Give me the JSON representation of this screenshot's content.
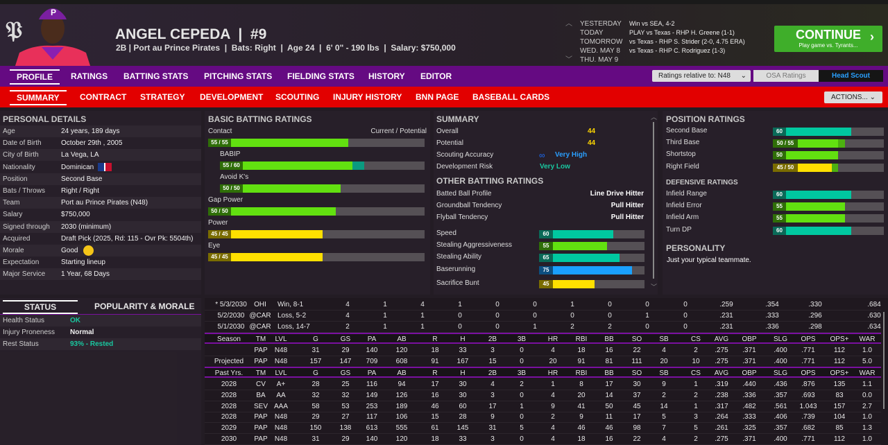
{
  "header": {
    "logo_text": "P",
    "player_name": "ANGEL CEPEDA  |  #9",
    "player_info": "2B | Port au Prince Pirates  |  Bats: Right  |  Age 24  |  6' 0\" - 190 lbs  |  Salary: $750,000"
  },
  "schedule": [
    {
      "day": "YESTERDAY",
      "text": "Win vs SEA, 4-2"
    },
    {
      "day": "TODAY",
      "text": "PLAY vs Texas - RHP H. Greene (1-1)"
    },
    {
      "day": "TOMORROW",
      "text": "vs Texas - RHP S. Strider (2-0, 4.75 ERA)"
    },
    {
      "day": "WED. MAY 8",
      "text": "vs Texas - RHP C. Rodriguez (1-3)"
    },
    {
      "day": "THU. MAY 9",
      "text": ""
    }
  ],
  "continue": {
    "label": "CONTINUE",
    "sub": "Play game vs. Tyrants..."
  },
  "main_tabs": [
    "PROFILE",
    "RATINGS",
    "BATTING STATS",
    "PITCHING STATS",
    "FIELDING STATS",
    "HISTORY",
    "EDITOR"
  ],
  "ratings_relative": "Ratings relative to: N48",
  "osa_ratings": "OSA Ratings",
  "head_scout": "Head Scout",
  "sub_tabs": [
    "SUMMARY",
    "CONTRACT",
    "STRATEGY",
    "DEVELOPMENT",
    "SCOUTING",
    "INJURY HISTORY",
    "BNN PAGE",
    "BASEBALL CARDS"
  ],
  "actions": "ACTIONS...",
  "personal": {
    "title": "PERSONAL DETAILS",
    "rows": [
      {
        "k": "Age",
        "v": "24 years, 189 days"
      },
      {
        "k": "Date of Birth",
        "v": "October 29th , 2005"
      },
      {
        "k": "City of Birth",
        "v": "La Vega, LA"
      },
      {
        "k": "Nationality",
        "v": "Dominican"
      },
      {
        "k": "Position",
        "v": "Second Base"
      },
      {
        "k": "Bats / Throws",
        "v": "Right / Right"
      },
      {
        "k": "Team",
        "v": "Port au Prince Pirates (N48)"
      },
      {
        "k": "Salary",
        "v": "$750,000"
      },
      {
        "k": "Signed through",
        "v": "2030 (minimum)"
      },
      {
        "k": "Acquired",
        "v": "Draft Pick (2025, Rd: 115 - Ovr Pk: 5504th)"
      },
      {
        "k": "Morale",
        "v": "Good"
      },
      {
        "k": "Expectation",
        "v": "Starting lineup"
      },
      {
        "k": "Major Service",
        "v": "1 Year, 68 Days"
      }
    ]
  },
  "status": {
    "tabs": [
      "STATUS",
      "POPULARITY & MORALE"
    ],
    "rows": [
      {
        "k": "Health Status",
        "v": "OK",
        "c": "#19c8a0"
      },
      {
        "k": "Injury Proneness",
        "v": "Normal",
        "c": "#f2f2f2"
      },
      {
        "k": "Rest Status",
        "v": "93% - Rested",
        "c": "#19c8a0"
      }
    ]
  },
  "batting": {
    "title": "BASIC BATTING RATINGS",
    "cp": "Current / Potential",
    "items": [
      {
        "name": "Contact",
        "label": "55 / 55",
        "cur": 55,
        "pot": 55,
        "indent": false
      },
      {
        "name": "BABIP",
        "label": "55 / 60",
        "cur": 55,
        "pot": 60,
        "indent": true
      },
      {
        "name": "Avoid K's",
        "label": "50 / 50",
        "cur": 50,
        "pot": 50,
        "indent": true
      },
      {
        "name": "Gap Power",
        "label": "50 / 50",
        "cur": 50,
        "pot": 50,
        "indent": false
      },
      {
        "name": "Power",
        "label": "45 / 45",
        "cur": 45,
        "pot": 45,
        "indent": false
      },
      {
        "name": "Eye",
        "label": "45 / 45",
        "cur": 45,
        "pot": 45,
        "indent": false
      }
    ]
  },
  "summary": {
    "title": "SUMMARY",
    "overall_k": "Overall",
    "overall": "44",
    "potential_k": "Potential",
    "potential": "44",
    "scout_k": "Scouting Accuracy",
    "scout": "Very High",
    "risk_k": "Development Risk",
    "risk": "Very Low",
    "other_title": "OTHER BATTING RATINGS",
    "profile": [
      {
        "k": "Batted Ball Profile",
        "v": "Line Drive Hitter"
      },
      {
        "k": "Groundball Tendency",
        "v": "Pull Hitter"
      },
      {
        "k": "Flyball Tendency",
        "v": "Pull Hitter"
      }
    ],
    "bars": [
      {
        "k": "Speed",
        "label": "60",
        "cur": 60,
        "pot": 60
      },
      {
        "k": "Stealing Aggressiveness",
        "label": "55",
        "cur": 55,
        "pot": 55
      },
      {
        "k": "Stealing Ability",
        "label": "65",
        "cur": 65,
        "pot": 65
      },
      {
        "k": "Baserunning",
        "label": "75",
        "cur": 75,
        "pot": 75
      },
      {
        "k": "Sacrifice Bunt",
        "label": "45",
        "cur": 45,
        "pot": 45
      }
    ]
  },
  "position": {
    "title": "POSITION RATINGS",
    "items": [
      {
        "k": "Second Base",
        "label": "60",
        "cur": 60,
        "pot": 60
      },
      {
        "k": "Third Base",
        "label": "50 / 55",
        "cur": 50,
        "pot": 55
      },
      {
        "k": "Shortstop",
        "label": "50",
        "cur": 50,
        "pot": 50
      },
      {
        "k": "Right Field",
        "label": "45 / 50",
        "cur": 45,
        "pot": 50
      }
    ],
    "def_title": "DEFENSIVE RATINGS",
    "def": [
      {
        "k": "Infield Range",
        "label": "60",
        "cur": 60,
        "pot": 60
      },
      {
        "k": "Infield Error",
        "label": "55",
        "cur": 55,
        "pot": 55
      },
      {
        "k": "Infield Arm",
        "label": "55",
        "cur": 55,
        "pot": 55
      },
      {
        "k": "Turn DP",
        "label": "60",
        "cur": 60,
        "pot": 60
      }
    ],
    "pers_title": "PERSONALITY",
    "pers": "Just your typical teammate."
  },
  "colors": {
    "teal": "#00c8a0",
    "green": "#62e010",
    "yellow": "#ffe000",
    "blue": "#1aa0ff"
  },
  "game_log": [
    [
      "* 5/3/2030",
      "OHI",
      "Win, 8-1",
      "4",
      "1",
      "4",
      "1",
      "0",
      "0",
      "1",
      "0",
      "0",
      "0",
      ".259",
      ".354",
      ".330",
      ".684"
    ],
    [
      "5/2/2030",
      "@CAR",
      "Loss, 5-2",
      "4",
      "1",
      "1",
      "0",
      "0",
      "0",
      "0",
      "0",
      "1",
      "0",
      ".231",
      ".333",
      ".296",
      ".630"
    ],
    [
      "5/1/2030",
      "@CAR",
      "Loss, 14-7",
      "2",
      "1",
      "1",
      "0",
      "0",
      "1",
      "2",
      "2",
      "0",
      "0",
      ".231",
      ".336",
      ".298",
      ".634"
    ]
  ],
  "season_header": [
    "Season",
    "TM",
    "LVL",
    "G",
    "GS",
    "PA",
    "AB",
    "R",
    "H",
    "2B",
    "3B",
    "HR",
    "RBI",
    "BB",
    "SO",
    "SB",
    "CS",
    "AVG",
    "OBP",
    "SLG",
    "OPS",
    "OPS+",
    "WAR"
  ],
  "season_rows": [
    [
      "",
      "PAP",
      "N48",
      "31",
      "29",
      "140",
      "120",
      "18",
      "33",
      "3",
      "0",
      "4",
      "18",
      "16",
      "22",
      "4",
      "2",
      ".275",
      ".371",
      ".400",
      ".771",
      "112",
      "1.0"
    ],
    [
      "Projected",
      "PAP",
      "N48",
      "157",
      "147",
      "709",
      "608",
      "91",
      "167",
      "15",
      "0",
      "20",
      "91",
      "81",
      "111",
      "20",
      "10",
      ".275",
      ".371",
      ".400",
      ".771",
      "112",
      "5.0"
    ]
  ],
  "past_header": [
    "Past Yrs.",
    "TM",
    "LVL",
    "G",
    "GS",
    "PA",
    "AB",
    "R",
    "H",
    "2B",
    "3B",
    "HR",
    "RBI",
    "BB",
    "SO",
    "SB",
    "CS",
    "AVG",
    "OBP",
    "SLG",
    "OPS",
    "OPS+",
    "WAR"
  ],
  "past_rows": [
    [
      "2028",
      "CV",
      "A+",
      "28",
      "25",
      "116",
      "94",
      "17",
      "30",
      "4",
      "2",
      "1",
      "8",
      "17",
      "30",
      "9",
      "1",
      ".319",
      ".440",
      ".436",
      ".876",
      "135",
      "1.1"
    ],
    [
      "2028",
      "BA",
      "AA",
      "32",
      "32",
      "149",
      "126",
      "16",
      "30",
      "3",
      "0",
      "4",
      "20",
      "14",
      "37",
      "2",
      "2",
      ".238",
      ".336",
      ".357",
      ".693",
      "83",
      "0.0"
    ],
    [
      "2028",
      "SEV",
      "AAA",
      "58",
      "53",
      "253",
      "189",
      "46",
      "60",
      "17",
      "1",
      "9",
      "41",
      "50",
      "45",
      "14",
      "1",
      ".317",
      ".482",
      ".561",
      "1.043",
      "157",
      "2.7"
    ],
    [
      "2028",
      "PAP",
      "N48",
      "29",
      "27",
      "117",
      "106",
      "15",
      "28",
      "9",
      "0",
      "2",
      "9",
      "11",
      "17",
      "5",
      "3",
      ".264",
      ".333",
      ".406",
      ".739",
      "104",
      "1.0"
    ],
    [
      "2029",
      "PAP",
      "N48",
      "150",
      "138",
      "613",
      "555",
      "61",
      "145",
      "31",
      "5",
      "4",
      "46",
      "46",
      "98",
      "7",
      "5",
      ".261",
      ".325",
      ".357",
      ".682",
      "85",
      "1.3"
    ],
    [
      "2030",
      "PAP",
      "N48",
      "31",
      "29",
      "140",
      "120",
      "18",
      "33",
      "3",
      "0",
      "4",
      "18",
      "16",
      "22",
      "4",
      "2",
      ".275",
      ".371",
      ".400",
      ".771",
      "112",
      "1.0"
    ]
  ]
}
